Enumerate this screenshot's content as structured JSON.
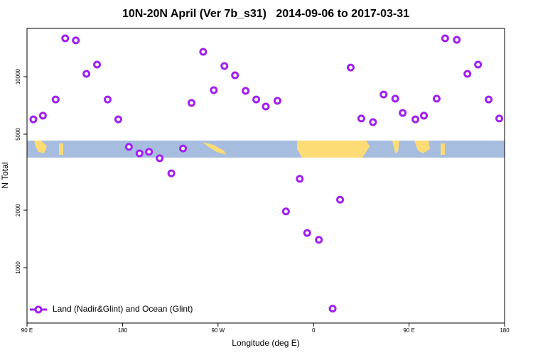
{
  "chart_data": {
    "type": "scatter",
    "title": "10N-20N April (Ver 7b_s31)   2014-09-06 to 2017-03-31",
    "xlabel": "Longitude (deg E)",
    "ylabel": "N Total",
    "xlim": [
      90,
      540
    ],
    "ylim": [
      513,
      17900
    ],
    "ylog": true,
    "legend": "bottom-left",
    "xticks": [
      {
        "value": 90,
        "label": "90 E"
      },
      {
        "value": 180,
        "label": "180"
      },
      {
        "value": 270,
        "label": "90 W"
      },
      {
        "value": 360,
        "label": "0"
      },
      {
        "value": 450,
        "label": "90 E"
      },
      {
        "value": 540,
        "label": "180"
      }
    ],
    "yticks": [
      1000,
      2000,
      5000,
      10000
    ],
    "series": [
      {
        "name": "Land (Nadir&Glint) and Ocean (Glint)",
        "color": "#a020f0",
        "x": [
          96,
          105,
          117,
          126,
          136,
          146,
          156,
          166,
          176,
          186,
          196,
          205,
          215,
          226,
          237,
          245,
          256,
          266,
          276,
          286,
          296,
          306,
          315,
          326,
          334,
          347,
          354,
          365,
          378,
          385,
          395,
          405,
          416,
          426,
          437,
          444,
          456,
          464,
          476,
          484,
          495,
          505,
          515,
          525,
          535
        ],
        "values": [
          5980,
          6250,
          7600,
          15880,
          15490,
          10350,
          11570,
          7600,
          5980,
          4290,
          3970,
          4040,
          3740,
          3120,
          4210,
          7290,
          13490,
          8500,
          11370,
          10170,
          8430,
          7600,
          6980,
          7480,
          1970,
          2920,
          1520,
          1400,
          610,
          2270,
          11170,
          6040,
          5780,
          8070,
          7670,
          6460,
          5980,
          6250,
          7670,
          15880,
          15600,
          10350,
          11570,
          7600,
          6040
        ]
      }
    ]
  }
}
